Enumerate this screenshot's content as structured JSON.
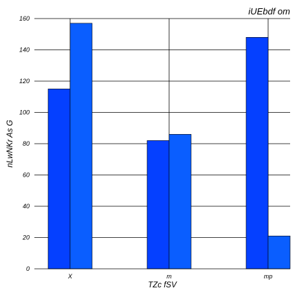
{
  "chart_data": {
    "type": "bar",
    "title": "iUEbdf om",
    "xlabel": "TZc fSV",
    "ylabel": "nLwNKr As G",
    "categories": [
      "X",
      "m",
      "mp"
    ],
    "series": [
      {
        "values": [
          115,
          82,
          148
        ],
        "color": "#0540ff"
      },
      {
        "values": [
          157,
          86,
          21
        ],
        "color": "#0a5eff"
      }
    ],
    "ylim": [
      0,
      160
    ],
    "yticks": [
      0,
      20,
      40,
      60,
      80,
      100,
      120,
      140,
      160
    ],
    "grid": true,
    "legend": "none"
  }
}
